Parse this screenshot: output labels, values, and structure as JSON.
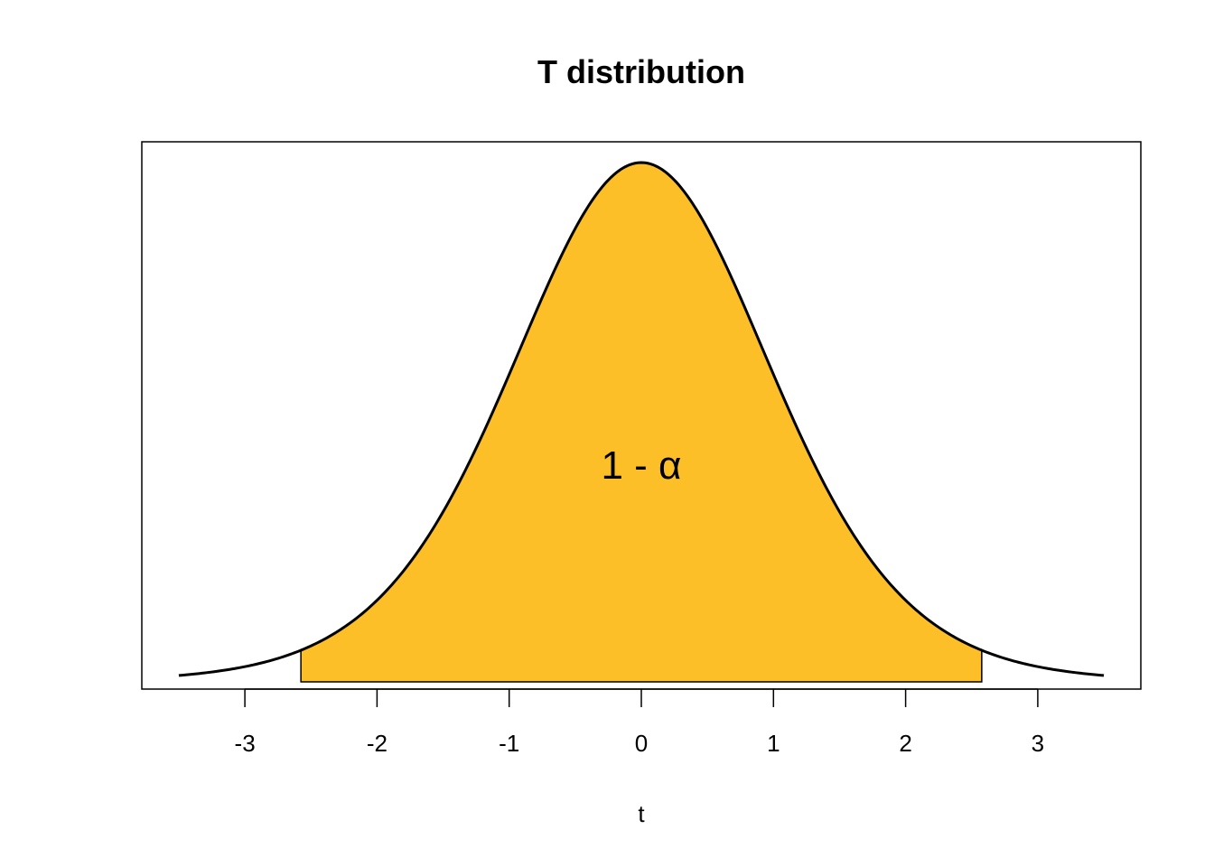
{
  "chart_data": {
    "type": "area",
    "title": "T distribution",
    "xlabel": "t",
    "ylabel": "",
    "xlim": [
      -3.5,
      3.5
    ],
    "x_ticks": [
      "-3",
      "-2",
      "-1",
      "0",
      "1",
      "2",
      "3"
    ],
    "y_axis_shown": false,
    "distribution": "student-t",
    "degrees_of_freedom": 10,
    "curve_x_range": [
      -3.5,
      3.5
    ],
    "shaded_region": {
      "from": -2.576,
      "to": 2.576,
      "label": "1 - α",
      "color": "#FDBF28"
    },
    "curve_color": "#000000",
    "grid": false,
    "legend": "none"
  }
}
